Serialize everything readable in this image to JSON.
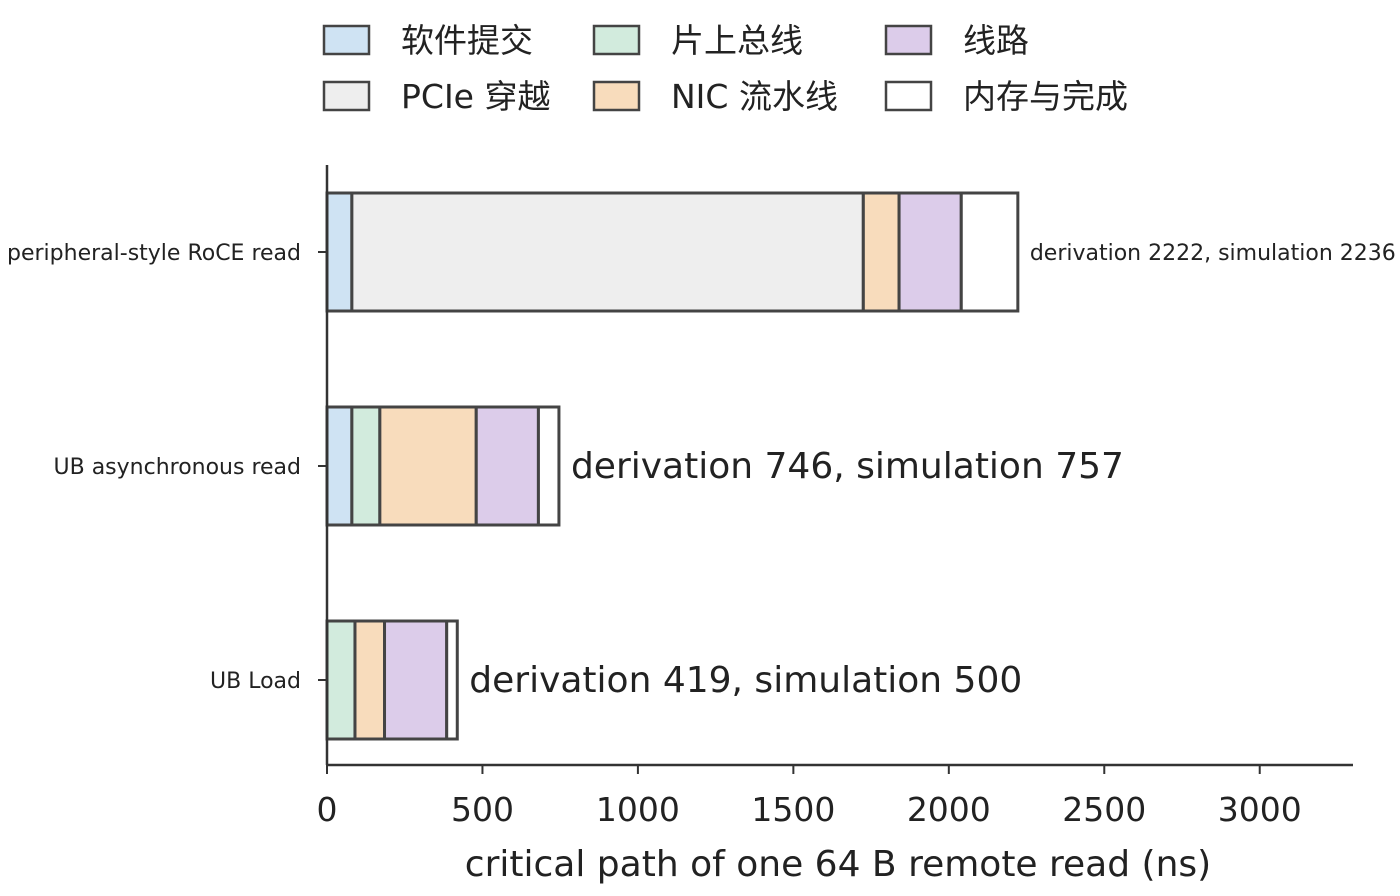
{
  "chart_data": {
    "type": "bar",
    "orientation": "horizontal",
    "stacked": true,
    "xlabel": "critical path of one 64 B remote read (ns)",
    "ylabel": "",
    "xlim": [
      0,
      3300
    ],
    "xticks": [
      0,
      500,
      1000,
      1500,
      2000,
      2500,
      3000
    ],
    "grid": false,
    "legend_position": "top",
    "categories": [
      "peripheral-style RoCE read",
      "UB asynchronous read",
      "UB Load"
    ],
    "series": [
      {
        "name": "软件提交",
        "color": "#cfe3f3",
        "values": [
          80,
          80,
          0
        ]
      },
      {
        "name": "PCIe 穿越",
        "color": "#eeeeee",
        "values": [
          1645,
          0,
          0
        ]
      },
      {
        "name": "片上总线",
        "color": "#d2ebdd",
        "values": [
          0,
          90,
          90
        ]
      },
      {
        "name": "NIC 流水线",
        "color": "#f8dcbc",
        "values": [
          115,
          310,
          95
        ]
      },
      {
        "name": "线路",
        "color": "#dcccea",
        "values": [
          200,
          200,
          200
        ]
      },
      {
        "name": "内存与完成",
        "color": "#ffffff",
        "values": [
          182,
          66,
          34
        ]
      }
    ],
    "legend_order": [
      "软件提交",
      "片上总线",
      "线路",
      "PCIe 穿越",
      "NIC 流水线",
      "内存与完成"
    ],
    "annotations": [
      {
        "text": "derivation 2222, simulation 2236",
        "size": "small"
      },
      {
        "text": "derivation 746, simulation 757",
        "size": "large"
      },
      {
        "text": "derivation 419, simulation 500",
        "size": "large"
      }
    ],
    "edge_color": "#444444"
  }
}
